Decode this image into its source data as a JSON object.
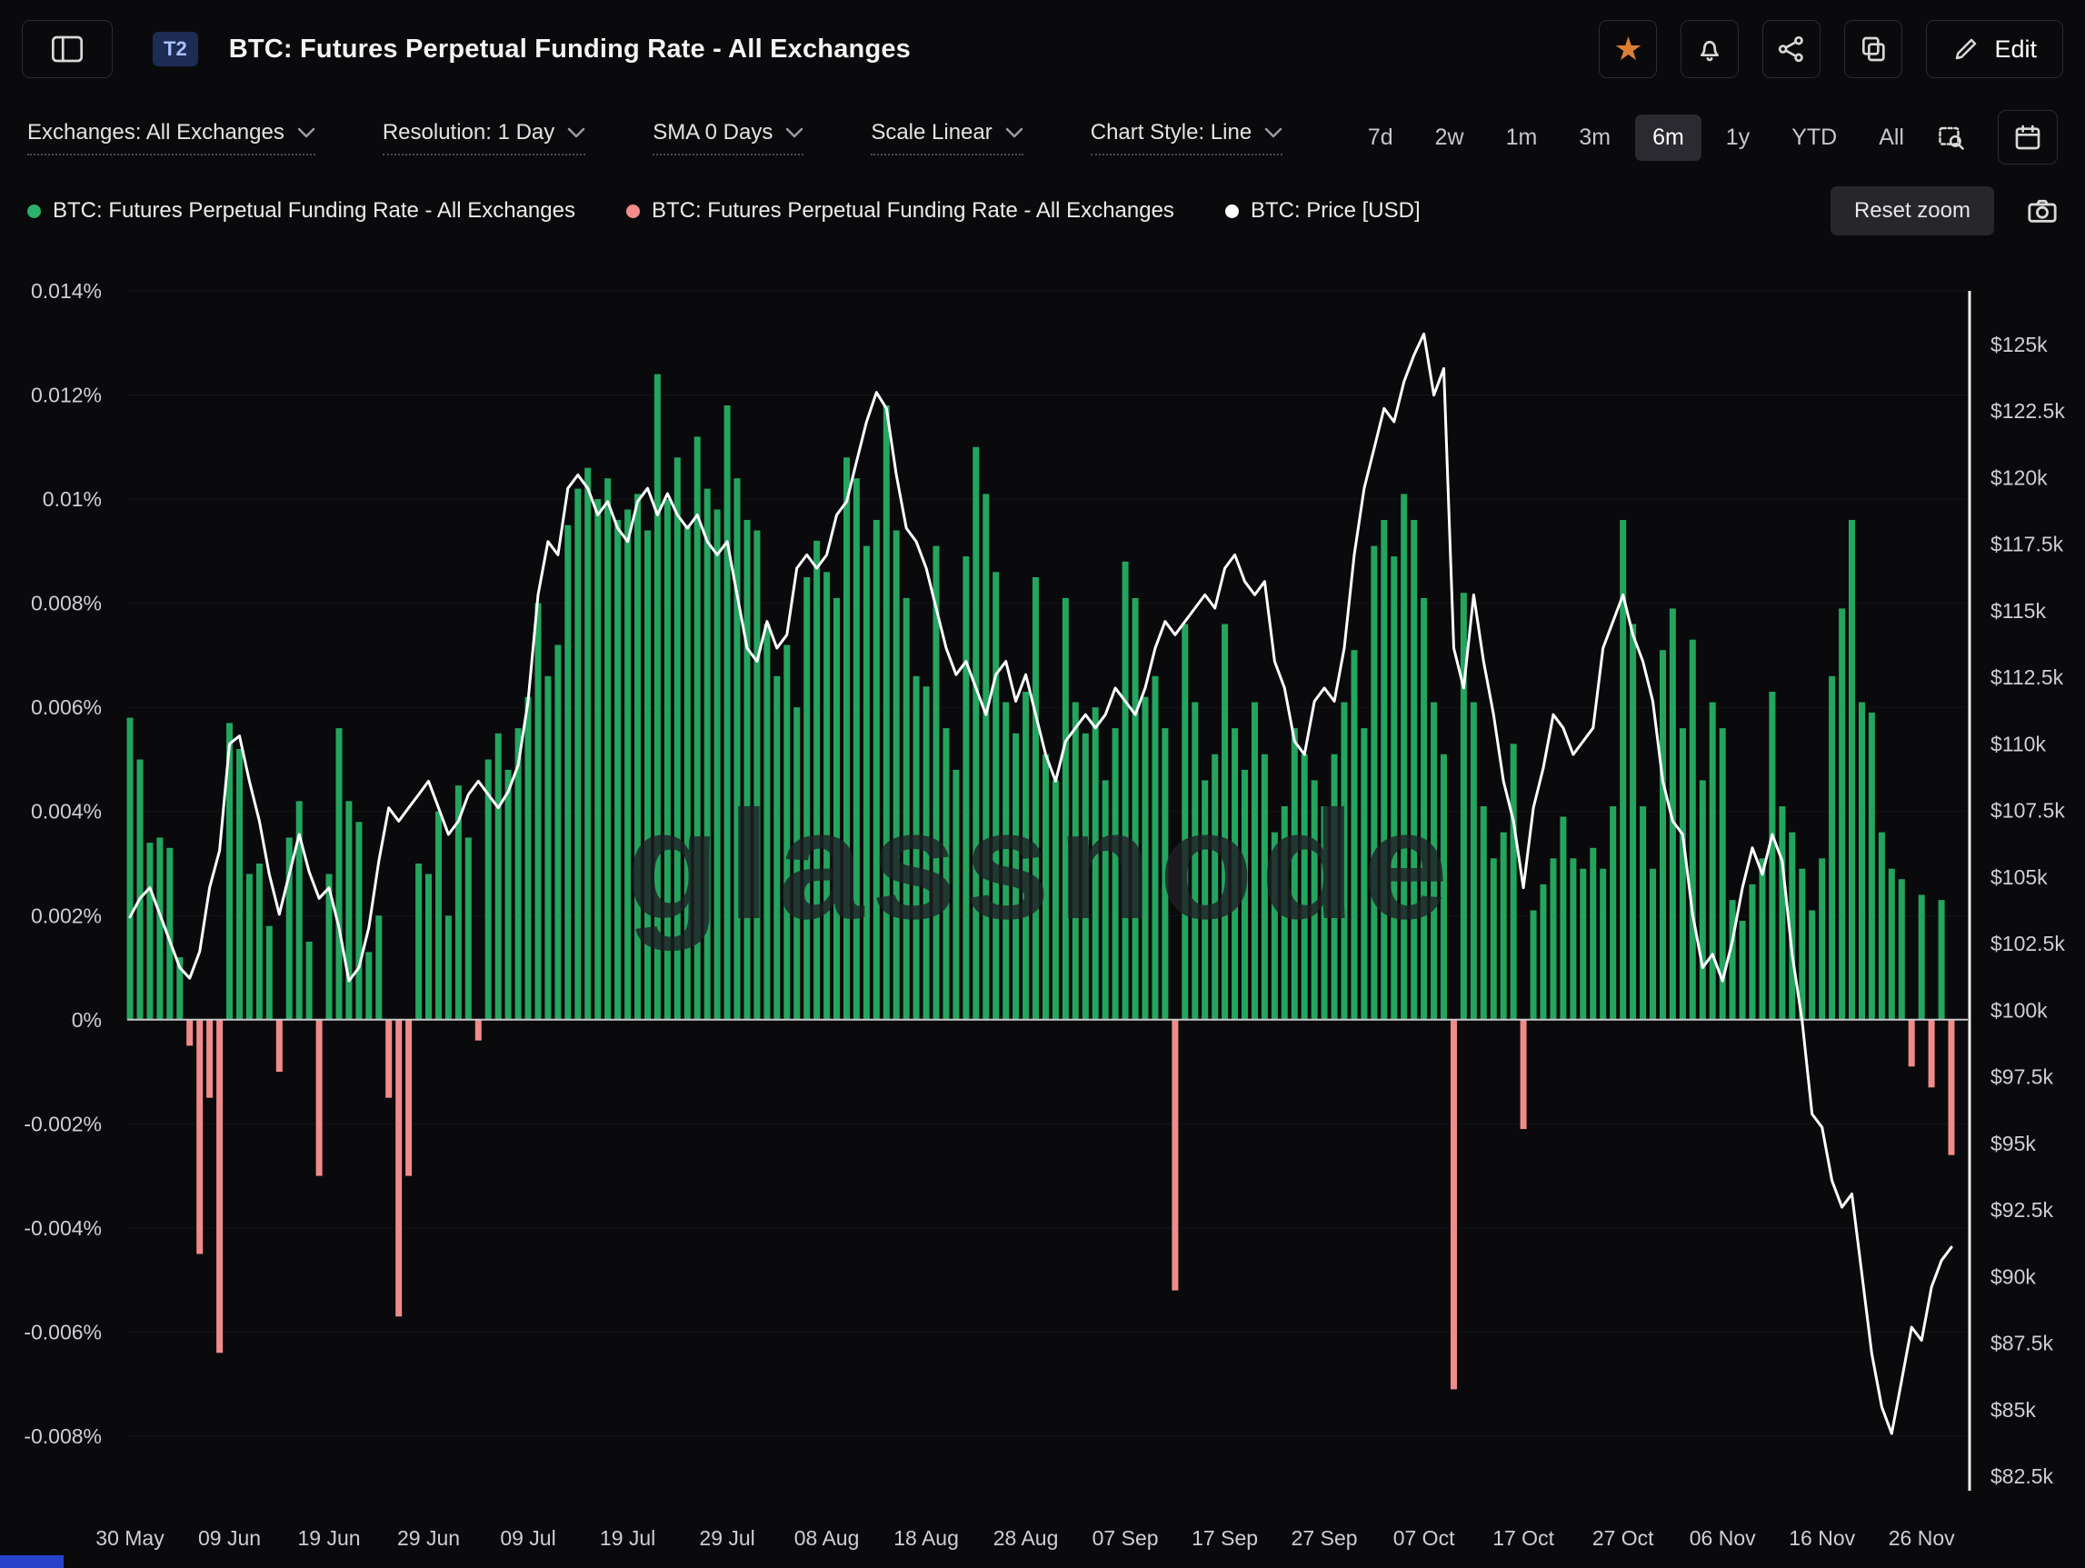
{
  "header": {
    "badge": "T2",
    "title": "BTC: Futures Perpetual Funding Rate - All Exchanges",
    "edit_label": "Edit"
  },
  "toolbar": {
    "dropdowns": [
      {
        "label": "Exchanges: All Exchanges"
      },
      {
        "label": "Resolution: 1 Day"
      },
      {
        "label": "SMA 0 Days"
      },
      {
        "label": "Scale Linear"
      },
      {
        "label": "Chart Style: Line"
      }
    ],
    "ranges": [
      {
        "label": "7d",
        "active": false
      },
      {
        "label": "2w",
        "active": false
      },
      {
        "label": "1m",
        "active": false
      },
      {
        "label": "3m",
        "active": false
      },
      {
        "label": "6m",
        "active": true
      },
      {
        "label": "1y",
        "active": false
      },
      {
        "label": "YTD",
        "active": false
      },
      {
        "label": "All",
        "active": false
      }
    ]
  },
  "legend": {
    "items": [
      {
        "label": "BTC: Futures Perpetual Funding Rate - All Exchanges",
        "color": "#2bb169"
      },
      {
        "label": "BTC: Futures Perpetual Funding Rate - All Exchanges",
        "color": "#f28c8c"
      },
      {
        "label": "BTC: Price [USD]",
        "color": "#ffffff"
      }
    ],
    "reset_zoom_label": "Reset zoom"
  },
  "chart_data": {
    "type": "bar+line",
    "title": "BTC: Futures Perpetual Funding Rate - All Exchanges",
    "watermark": "glassnode",
    "x_axis": {
      "resolution": "1 Day",
      "ticks_every_n_points": 10,
      "n_points": 184,
      "tick_labels": [
        "30 May",
        "09 Jun",
        "19 Jun",
        "29 Jun",
        "09 Jul",
        "19 Jul",
        "29 Jul",
        "08 Aug",
        "18 Aug",
        "28 Aug",
        "07 Sep",
        "17 Sep",
        "27 Sep",
        "07 Oct",
        "17 Oct",
        "27 Oct",
        "06 Nov",
        "16 Nov",
        "26 Nov"
      ]
    },
    "left_axis": {
      "unit": "%",
      "tick_labels": [
        "0.014%",
        "0.012%",
        "0.01%",
        "0.008%",
        "0.006%",
        "0.004%",
        "0.002%",
        "0%",
        "-0.002%",
        "-0.004%",
        "-0.006%",
        "-0.008%"
      ],
      "tick_values": [
        0.014,
        0.012,
        0.01,
        0.008,
        0.006,
        0.004,
        0.002,
        0,
        -0.002,
        -0.004,
        -0.006,
        -0.008
      ]
    },
    "right_axis": {
      "unit": "USD",
      "tick_labels": [
        "$125k",
        "$122.5k",
        "$120k",
        "$117.5k",
        "$115k",
        "$112.5k",
        "$110k",
        "$107.5k",
        "$105k",
        "$102.5k",
        "$100k",
        "$97.5k",
        "$95k",
        "$92.5k",
        "$90k",
        "$87.5k",
        "$85k",
        "$82.5k"
      ],
      "tick_values_k": [
        125,
        122.5,
        120,
        117.5,
        115,
        112.5,
        110,
        107.5,
        105,
        102.5,
        100,
        97.5,
        95,
        92.5,
        90,
        87.5,
        85,
        82.5
      ]
    },
    "series": [
      {
        "name": "BTC: Futures Perpetual Funding Rate - All Exchanges",
        "type": "bar",
        "axis": "left",
        "positive_color": "#23a55e",
        "negative_color": "#f18b8b",
        "values_pct": [
          0.0058,
          0.005,
          0.0034,
          0.0035,
          0.0033,
          0.0012,
          -0.0005,
          -0.0045,
          -0.0015,
          -0.0064,
          0.0057,
          0.0052,
          0.0028,
          0.003,
          0.0018,
          -0.001,
          0.0035,
          0.0042,
          0.0015,
          -0.003,
          0.0028,
          0.0056,
          0.0042,
          0.0038,
          0.0013,
          0.002,
          -0.0015,
          -0.0057,
          -0.003,
          0.003,
          0.0028,
          0.004,
          0.002,
          0.0045,
          0.0035,
          -0.0004,
          0.005,
          0.0055,
          0.0048,
          0.0056,
          0.0062,
          0.008,
          0.0066,
          0.0072,
          0.0095,
          0.0102,
          0.0106,
          0.01,
          0.0104,
          0.0096,
          0.0098,
          0.0101,
          0.0094,
          0.0124,
          0.01,
          0.0108,
          0.0095,
          0.0112,
          0.0102,
          0.0098,
          0.0118,
          0.0104,
          0.0096,
          0.0094,
          0.0076,
          0.0066,
          0.0072,
          0.006,
          0.0085,
          0.0092,
          0.0086,
          0.0081,
          0.0108,
          0.0104,
          0.0091,
          0.0096,
          0.0118,
          0.0094,
          0.0081,
          0.0066,
          0.0064,
          0.0091,
          0.0056,
          0.0048,
          0.0089,
          0.011,
          0.0101,
          0.0086,
          0.0061,
          0.0055,
          0.0063,
          0.0085,
          0.0051,
          0.0046,
          0.0081,
          0.0061,
          0.0055,
          0.006,
          0.0046,
          0.0056,
          0.0088,
          0.0081,
          0.0062,
          0.0066,
          0.0056,
          -0.0052,
          0.0076,
          0.0061,
          0.0046,
          0.0051,
          0.0076,
          0.0056,
          0.0048,
          0.0061,
          0.0051,
          0.0036,
          0.0041,
          0.0056,
          0.0051,
          0.0046,
          0.0041,
          0.0051,
          0.0061,
          0.0071,
          0.0056,
          0.0091,
          0.0096,
          0.0089,
          0.0101,
          0.0096,
          0.0081,
          0.0061,
          0.0051,
          -0.0071,
          0.0082,
          0.0061,
          0.0041,
          0.0031,
          0.0036,
          0.0053,
          -0.0021,
          0.0021,
          0.0026,
          0.0031,
          0.0039,
          0.0031,
          0.0029,
          0.0033,
          0.0029,
          0.0041,
          0.0096,
          0.0076,
          0.0041,
          0.0029,
          0.0071,
          0.0079,
          0.0056,
          0.0073,
          0.0046,
          0.0061,
          0.0056,
          0.0023,
          0.0019,
          0.0026,
          0.0031,
          0.0063,
          0.0041,
          0.0036,
          0.0029,
          0.0021,
          0.0031,
          0.0066,
          0.0079,
          0.0096,
          0.0061,
          0.0059,
          0.0036,
          0.0029,
          0.0027,
          -0.0009,
          0.0024,
          -0.0013,
          0.0023,
          -0.0026
        ]
      },
      {
        "name": "BTC: Price [USD]",
        "type": "line",
        "axis": "right",
        "color": "#ffffff",
        "values_usd_k": [
          103.5,
          104.2,
          104.6,
          103.6,
          102.6,
          101.6,
          101.2,
          102.2,
          104.6,
          106.0,
          110.0,
          110.3,
          108.6,
          107.1,
          105.1,
          103.6,
          105.1,
          106.6,
          105.2,
          104.2,
          104.6,
          103.1,
          101.1,
          101.6,
          103.1,
          105.6,
          107.6,
          107.1,
          107.6,
          108.1,
          108.6,
          107.6,
          106.6,
          107.1,
          108.1,
          108.6,
          108.1,
          107.6,
          108.2,
          109.2,
          111.6,
          115.6,
          117.6,
          117.1,
          119.6,
          120.1,
          119.6,
          118.6,
          119.1,
          118.1,
          117.6,
          119.1,
          119.6,
          118.6,
          119.4,
          118.6,
          118.1,
          118.6,
          117.6,
          117.1,
          117.6,
          115.6,
          113.6,
          113.1,
          114.6,
          113.6,
          114.1,
          116.6,
          117.1,
          116.6,
          117.1,
          118.6,
          119.1,
          120.6,
          122.1,
          123.2,
          122.6,
          120.1,
          118.1,
          117.6,
          116.6,
          115.1,
          113.6,
          112.6,
          113.1,
          112.1,
          111.1,
          112.6,
          113.1,
          111.6,
          112.6,
          111.1,
          109.6,
          108.6,
          110.1,
          110.6,
          111.1,
          110.6,
          111.1,
          112.1,
          111.6,
          111.1,
          112.1,
          113.6,
          114.6,
          114.1,
          114.6,
          115.1,
          115.6,
          115.1,
          116.6,
          117.1,
          116.1,
          115.6,
          116.1,
          113.1,
          112.1,
          110.1,
          109.6,
          111.6,
          112.1,
          111.6,
          113.6,
          117.1,
          119.6,
          121.1,
          122.6,
          122.1,
          123.6,
          124.6,
          125.4,
          123.1,
          124.1,
          113.6,
          112.1,
          115.6,
          113.1,
          111.1,
          108.6,
          107.1,
          104.6,
          107.6,
          109.1,
          111.1,
          110.6,
          109.6,
          110.1,
          110.6,
          113.6,
          114.6,
          115.6,
          114.1,
          113.1,
          111.6,
          108.6,
          107.1,
          106.6,
          103.6,
          101.6,
          102.1,
          101.1,
          102.6,
          104.6,
          106.1,
          105.1,
          106.6,
          105.6,
          102.1,
          99.6,
          96.1,
          95.6,
          93.6,
          92.6,
          93.1,
          90.1,
          87.1,
          85.1,
          84.1,
          86.1,
          88.1,
          87.6,
          89.6,
          90.6,
          91.1
        ]
      }
    ]
  }
}
